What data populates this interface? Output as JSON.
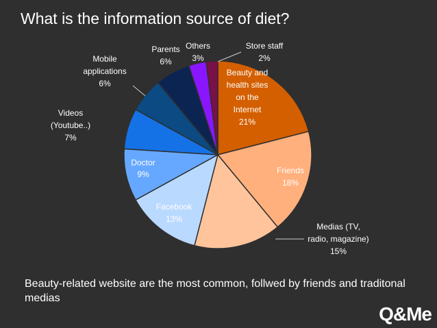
{
  "page": {
    "title": "What is the information source of diet?",
    "caption": "Beauty-related website are the most common, follwed by friends and traditonal medias",
    "logo": "Q&Me"
  },
  "chart_data": {
    "type": "pie",
    "title": "What is the information source of diet?",
    "slices": [
      {
        "lines": [
          "Beauty and",
          "health sites",
          "on the",
          "Internet"
        ],
        "pct": "21%",
        "value": 21,
        "color": "#d45f00",
        "label_color": "#ffffff"
      },
      {
        "lines": [
          "Friends"
        ],
        "pct": "18%",
        "value": 18,
        "color": "#ffb07d",
        "label_color": "#ffffff"
      },
      {
        "lines": [
          "Medias (TV,",
          "radio, magazine)"
        ],
        "pct": "15%",
        "value": 15,
        "color": "#ffc49c",
        "label_color": "#ffffff"
      },
      {
        "lines": [
          "Facebook"
        ],
        "pct": "13%",
        "value": 13,
        "color": "#b9d9ff",
        "label_color": "#ffffff"
      },
      {
        "lines": [
          "Doctor"
        ],
        "pct": "9%",
        "value": 9,
        "color": "#66a8ff",
        "label_color": "#ffffff"
      },
      {
        "lines": [
          "Videos",
          "(Youtube..)"
        ],
        "pct": "7%",
        "value": 7,
        "color": "#1572e6",
        "label_color": "#ffffff"
      },
      {
        "lines": [
          "Mobile",
          "applications"
        ],
        "pct": "6%",
        "value": 6,
        "color": "#0b4a82",
        "label_color": "#ffffff"
      },
      {
        "lines": [
          "Parents"
        ],
        "pct": "6%",
        "value": 6,
        "color": "#0c2452",
        "label_color": "#ffffff"
      },
      {
        "lines": [
          "Others"
        ],
        "pct": "3%",
        "value": 3,
        "color": "#8a16ff",
        "label_color": "#ffffff"
      },
      {
        "lines": [
          "Store staff"
        ],
        "pct": "2%",
        "value": 2,
        "color": "#7a1048",
        "label_color": "#ffffff"
      }
    ]
  }
}
